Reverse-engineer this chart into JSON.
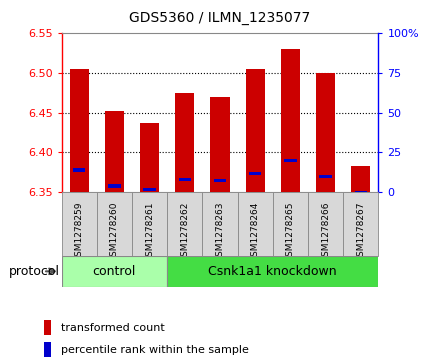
{
  "title": "GDS5360 / ILMN_1235077",
  "samples": [
    "GSM1278259",
    "GSM1278260",
    "GSM1278261",
    "GSM1278262",
    "GSM1278263",
    "GSM1278264",
    "GSM1278265",
    "GSM1278266",
    "GSM1278267"
  ],
  "red_values": [
    6.505,
    6.452,
    6.437,
    6.475,
    6.47,
    6.505,
    6.53,
    6.5,
    6.383
  ],
  "blue_values": [
    6.378,
    6.358,
    6.354,
    6.366,
    6.365,
    6.374,
    6.39,
    6.37,
    6.35
  ],
  "y_min": 6.35,
  "y_max": 6.55,
  "bar_bottom": 6.35,
  "bar_color": "#cc0000",
  "blue_color": "#0000cc",
  "control_samples": 3,
  "control_label": "control",
  "knockdown_label": "Csnk1a1 knockdown",
  "protocol_label": "protocol",
  "legend1": "transformed count",
  "legend2": "percentile rank within the sample",
  "right_axis_ticks": [
    0,
    25,
    50,
    75,
    100
  ],
  "right_axis_values": [
    6.35,
    6.4,
    6.45,
    6.5,
    6.55
  ],
  "left_axis_ticks": [
    6.35,
    6.4,
    6.45,
    6.5,
    6.55
  ],
  "grid_values": [
    6.4,
    6.45,
    6.5
  ],
  "control_color": "#aaffaa",
  "knockdown_color": "#44dd44",
  "bar_width": 0.55,
  "bg_color": "#d8d8d8",
  "spine_color": "#888888"
}
